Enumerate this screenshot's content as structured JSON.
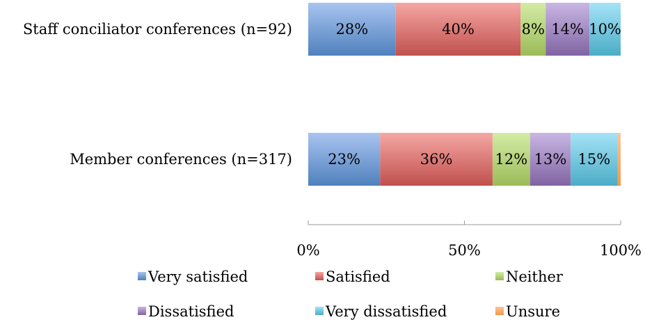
{
  "chart_data": {
    "type": "bar",
    "orientation": "horizontal",
    "stacked": true,
    "percent": true,
    "categories": [
      "Staff conciliator conferences (n=92)",
      "Member conferences (n=317)"
    ],
    "series": [
      {
        "name": "Very satisfied",
        "values": [
          28,
          23
        ],
        "labels": [
          "28%",
          "23%"
        ],
        "color": "#4f81bd",
        "light": "#a9c4f0"
      },
      {
        "name": "Satisfied",
        "values": [
          40,
          36
        ],
        "labels": [
          "40%",
          "36%"
        ],
        "color": "#c0504d",
        "light": "#f5a7a4"
      },
      {
        "name": "Neither",
        "values": [
          8,
          12
        ],
        "labels": [
          "8%",
          "12%"
        ],
        "color": "#9bbb59",
        "light": "#d3eca4"
      },
      {
        "name": "Dissatisfied",
        "values": [
          14,
          13
        ],
        "labels": [
          "14%",
          "13%"
        ],
        "color": "#8064a2",
        "light": "#c9b6e4"
      },
      {
        "name": "Very dissatisfied",
        "values": [
          10,
          15
        ],
        "labels": [
          "10%",
          "15%"
        ],
        "color": "#4bacc6",
        "light": "#a5e3f7"
      },
      {
        "name": "Unsure",
        "values": [
          0,
          1
        ],
        "labels": [
          "",
          ""
        ],
        "color": "#f79646",
        "light": "#fcc79a"
      }
    ],
    "xlim": [
      0,
      100
    ],
    "xticks": [
      0,
      50,
      100
    ],
    "xtick_labels": [
      "0%",
      "50%",
      "100%"
    ],
    "grid": false,
    "legend_position": "bottom"
  }
}
